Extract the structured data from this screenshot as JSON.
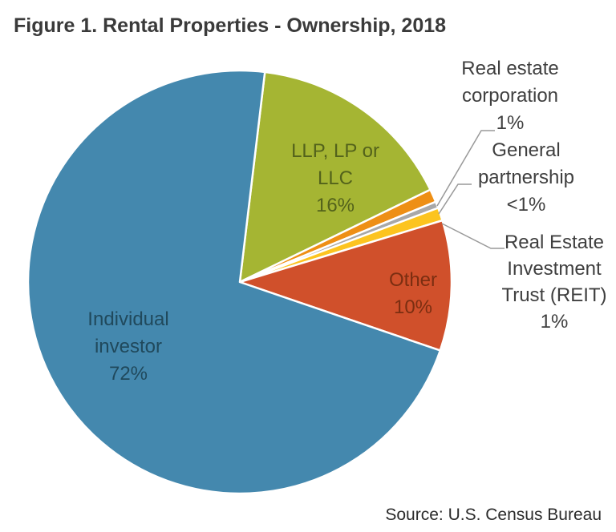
{
  "chart_data": {
    "type": "pie",
    "title": "Figure 1. Rental Properties - Ownership, 2018",
    "source": "Source: U.S. Census Bureau",
    "rotation": "clockwise",
    "start_angle_deg": 6.8,
    "legend_position": "none",
    "slices": [
      {
        "name": "llp-lp-llc",
        "label": "LLP, LP or LLC",
        "label_lines": [
          "LLP, LP or",
          "LLC",
          "16%"
        ],
        "value": 16,
        "value_label": "16%",
        "color": "#a5b533",
        "label_color": "#53621b",
        "label_placement": "inside"
      },
      {
        "name": "real-estate-corporation",
        "label": "Real estate corporation",
        "label_lines": [
          "Real estate",
          "corporation",
          "1%"
        ],
        "value": 1,
        "value_label": "1%",
        "color": "#ee8f15",
        "label_color": "#3f3f3f",
        "label_placement": "outside"
      },
      {
        "name": "general-partnership",
        "label": "General partnership",
        "label_lines": [
          "General",
          "partnership",
          "<1%"
        ],
        "value": 0.5,
        "value_label": "<1%",
        "color": "#a8a8a8",
        "label_color": "#3f3f3f",
        "label_placement": "outside"
      },
      {
        "name": "reit",
        "label": "Real Estate Investment Trust (REIT)",
        "label_lines": [
          "Real Estate",
          "Investment",
          "Trust (REIT)",
          "1%"
        ],
        "value": 1,
        "value_label": "1%",
        "color": "#fcc41f",
        "label_color": "#3f3f3f",
        "label_placement": "outside"
      },
      {
        "name": "other",
        "label": "Other",
        "label_lines": [
          "Other",
          "10%"
        ],
        "value": 10,
        "value_label": "10%",
        "color": "#d0502b",
        "label_color": "#7b2e11",
        "label_placement": "inside"
      },
      {
        "name": "individual-investor",
        "label": "Individual investor",
        "label_lines": [
          "Individual",
          "investor",
          "72%"
        ],
        "value": 72,
        "value_label": "72%",
        "color": "#4488ae",
        "label_color": "#20495c",
        "label_placement": "inside"
      }
    ]
  }
}
